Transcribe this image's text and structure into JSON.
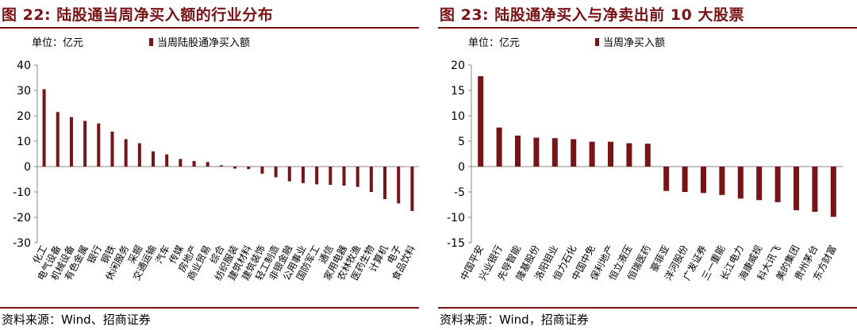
{
  "left": {
    "title": "图 22:  陆股通当周净买入额的行业分布",
    "source": "资料来源：Wind、招商证券",
    "chart_data": {
      "type": "bar",
      "unit_label": "单位：亿元",
      "legend": "当周陆股通净买入额",
      "legend_placement": "top",
      "ylim": [
        -30,
        40
      ],
      "yticks": [
        40,
        30,
        20,
        10,
        0,
        -10,
        -20,
        -30
      ],
      "grid": false,
      "bar_color": "#7b1216",
      "categories": [
        "化工",
        "电气设备",
        "机械设备",
        "有色金属",
        "银行",
        "钢铁",
        "休闲服务",
        "采掘",
        "交通运输",
        "汽车",
        "传媒",
        "房地产",
        "商业贸易",
        "综合",
        "纺织服装",
        "建筑材料",
        "建筑装饰",
        "轻工制造",
        "非银金融",
        "公用事业",
        "国防军工",
        "通信",
        "家用电器",
        "农林牧渔",
        "医药生物",
        "计算机",
        "电子",
        "食品饮料"
      ],
      "series": [
        {
          "values": [
            30.5,
            21.5,
            19.5,
            18.0,
            17.0,
            13.8,
            10.8,
            9.2,
            6.0,
            4.8,
            3.0,
            2.2,
            1.8,
            0.5,
            -0.8,
            -1.0,
            -2.8,
            -4.2,
            -5.8,
            -6.5,
            -7.0,
            -7.2,
            -7.5,
            -8.0,
            -10.0,
            -12.8,
            -14.5,
            -17.5
          ]
        }
      ]
    }
  },
  "right": {
    "title": "图 23:  陆股通净买入与净卖出前 10 大股票",
    "source": "资料来源：Wind，招商证券",
    "chart_data": {
      "type": "bar",
      "unit_label": "单位：亿元",
      "legend": "当周净买入额",
      "legend_placement": "top",
      "ylim": [
        -15,
        20
      ],
      "yticks": [
        20,
        15,
        10,
        5,
        0,
        -5,
        -10,
        -15
      ],
      "grid": false,
      "bar_color": "#7b1216",
      "categories": [
        "中国平安",
        "兴业银行",
        "先导智能",
        "隆基股份",
        "洛阳钼业",
        "恒力石化",
        "中国中免",
        "保利地产",
        "恒立液压",
        "恒瑞医药",
        "豪菲亚",
        "洋河股份",
        "广发证券",
        "三一重能",
        "长江电力",
        "海康威视",
        "科大讯飞",
        "美的集团",
        "贵州茅台",
        "东方财富"
      ],
      "series": [
        {
          "values": [
            17.8,
            7.7,
            6.1,
            5.7,
            5.6,
            5.4,
            4.9,
            4.9,
            4.6,
            4.5,
            -4.8,
            -5.0,
            -5.2,
            -5.6,
            -6.3,
            -6.6,
            -7.0,
            -8.6,
            -8.9,
            -9.9
          ]
        }
      ]
    }
  }
}
